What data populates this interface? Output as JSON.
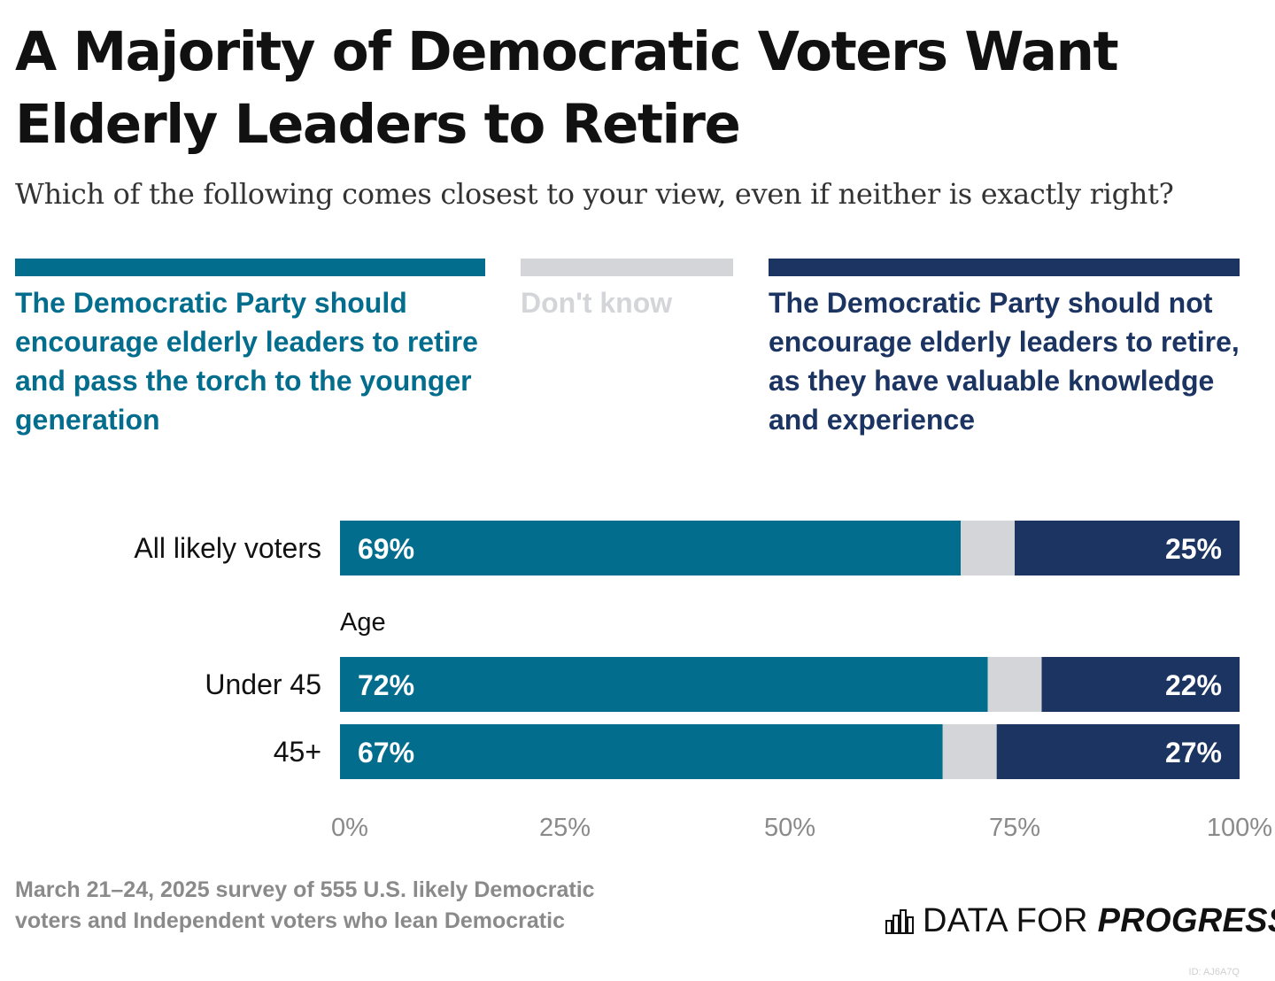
{
  "title": "A Majority of Democratic Voters Want Elderly Leaders to Retire",
  "subtitle": "Which of the following comes closest to your view, even if neither is exactly right?",
  "legend": [
    {
      "label": "The Democratic Party should encourage elderly leaders to retire and pass the torch to the younger generation",
      "color": "#036d8e"
    },
    {
      "label": "Don't know",
      "color": "#d4d5d9"
    },
    {
      "label": "The Democratic Party should not encourage elderly leaders to retire, as they have valuable knowledge and experience",
      "color": "#1b3462"
    }
  ],
  "chart_data": {
    "type": "bar",
    "orientation": "horizontal",
    "stacked": true,
    "title": "A Majority of Democratic Voters Want Elderly Leaders to Retire",
    "subtitle": "Which of the following comes closest to your view, even if neither is exactly right?",
    "group_label": "Age",
    "categories": [
      "All likely voters",
      "Under 45",
      "45+"
    ],
    "series": [
      {
        "name": "The Democratic Party should encourage elderly leaders to retire and pass the torch to the younger generation",
        "values": [
          69,
          72,
          67
        ],
        "color": "#036d8e"
      },
      {
        "name": "Don't know",
        "values": [
          6,
          6,
          6
        ],
        "color": "#d4d5d9"
      },
      {
        "name": "The Democratic Party should not encourage elderly leaders to retire, as they have valuable knowledge and experience",
        "values": [
          25,
          22,
          27
        ],
        "color": "#1b3462"
      }
    ],
    "data_labels": [
      [
        "69%",
        "25%"
      ],
      [
        "72%",
        "22%"
      ],
      [
        "67%",
        "27%"
      ]
    ],
    "xlim": [
      0,
      100
    ],
    "x_ticks": [
      "0%",
      "25%",
      "50%",
      "75%",
      "100%"
    ],
    "grid": false,
    "legend_position": "top"
  },
  "footer": {
    "note": "March 21–24, 2025 survey of 555 U.S. likely Democratic voters and Independent voters who lean Democratic",
    "brand_plain": "DATA FOR",
    "brand_strong": "PROGRESS",
    "chart_id": "ID: AJ6A7Q"
  }
}
